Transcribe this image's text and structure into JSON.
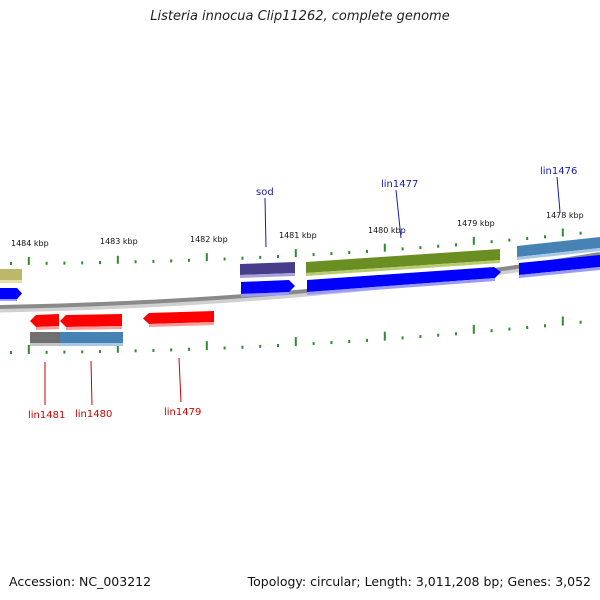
{
  "title": "Listeria innocua Clip11262, complete genome",
  "footer": {
    "accession": "Accession: NC_003212",
    "summary": "Topology: circular; Length: 3,011,208 bp; Genes: 3,052"
  },
  "colors": {
    "backbone": "#8a8a8a",
    "tick": "#2e8b2e",
    "cds_forward": "#0000ff",
    "cds_reverse": "#ff0000",
    "label_forward": "#1a1aaa",
    "label_reverse": "#cc0000",
    "gene_olive": "#6b8e23",
    "gene_steel": "#4682b4",
    "gene_slate": "#483d8b",
    "gene_khaki": "#bdb76b",
    "gene_gray": "#707070"
  },
  "scale": {
    "labels": [
      "1484 kbp",
      "1483 kbp",
      "1482 kbp",
      "1481 kbp",
      "1480 kbp",
      "1479 kbp",
      "1478 kbp"
    ]
  },
  "genes": {
    "forward": [
      "sod",
      "lin1477",
      "lin1476"
    ],
    "reverse": [
      "lin1481",
      "lin1480",
      "lin1479"
    ]
  }
}
